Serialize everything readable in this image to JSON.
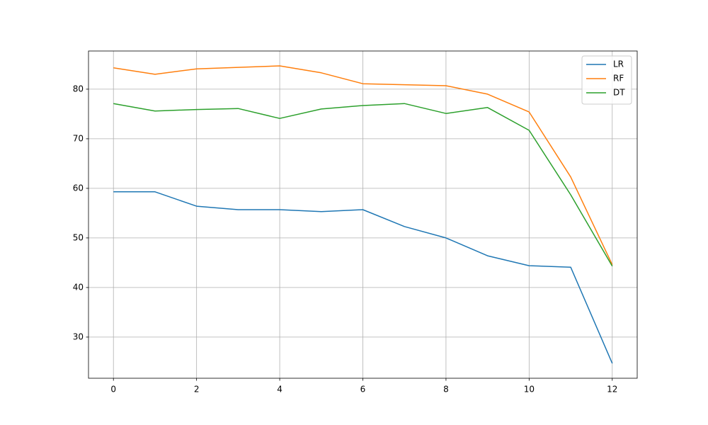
{
  "chart_data": {
    "type": "line",
    "x": [
      0,
      1,
      2,
      3,
      4,
      5,
      6,
      7,
      8,
      9,
      10,
      11,
      12
    ],
    "series": [
      {
        "name": "LR",
        "color": "#1f77b4",
        "values": [
          59.3,
          59.3,
          56.4,
          55.7,
          55.7,
          55.3,
          55.7,
          52.3,
          50.0,
          46.4,
          44.4,
          44.1,
          24.7
        ]
      },
      {
        "name": "RF",
        "color": "#ff7f0e",
        "values": [
          84.3,
          83.0,
          84.1,
          84.4,
          84.7,
          83.3,
          81.1,
          80.9,
          80.7,
          79.0,
          75.4,
          62.3,
          44.6
        ]
      },
      {
        "name": "DT",
        "color": "#2ca02c",
        "values": [
          77.1,
          75.6,
          75.9,
          76.1,
          74.1,
          76.0,
          76.7,
          77.1,
          75.1,
          76.3,
          71.7,
          58.7,
          44.3
        ]
      }
    ],
    "xlim": [
      -0.6,
      12.6
    ],
    "xticks": [
      0,
      2,
      4,
      6,
      8,
      10,
      12
    ],
    "ylim": [
      21.7,
      87.7
    ],
    "yticks": [
      30,
      40,
      50,
      60,
      70,
      80
    ],
    "grid": true,
    "legend": "upper right"
  }
}
